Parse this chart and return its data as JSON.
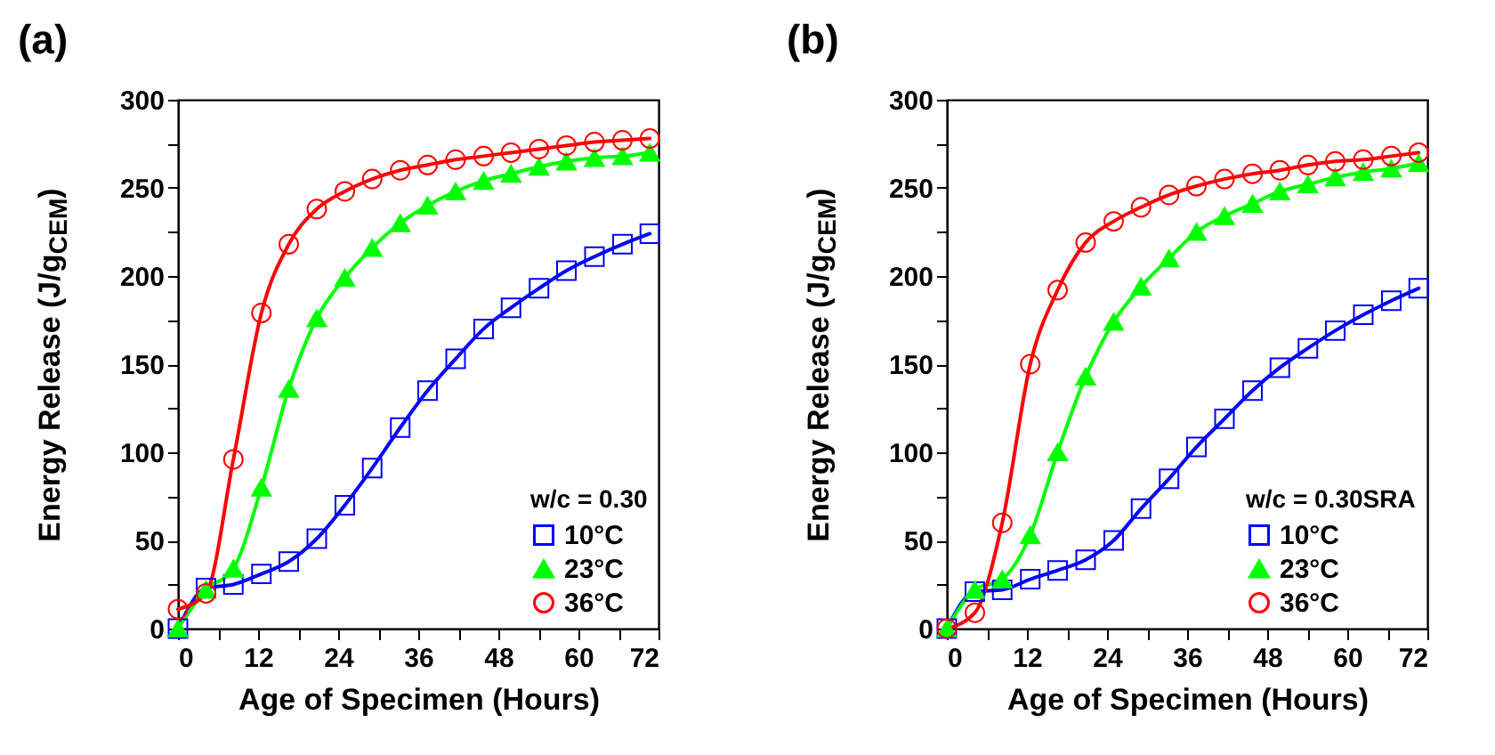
{
  "chart_data": [
    {
      "type": "line",
      "title": "(a)",
      "xlabel": "Age of Specimen (Hours)",
      "ylabel": "Energy Release (J/g$_{CEM}$)",
      "legend_title": "w/c = 0.30",
      "legend": "bottom right",
      "grid": false,
      "line_style": "solid",
      "xlim": [
        0,
        72
      ],
      "xticks": [
        0,
        {
          "value": 6,
          "label": null
        },
        12,
        {
          "value": 18,
          "label": null
        },
        24,
        {
          "value": 30,
          "label": null
        },
        36,
        {
          "value": 42,
          "label": null
        },
        48,
        {
          "value": 54,
          "label": null
        },
        60,
        {
          "value": 66,
          "label": null
        },
        72
      ],
      "ylim": [
        0,
        300
      ],
      "yticks": [
        0,
        {
          "value": 25,
          "label": null
        },
        50,
        {
          "value": 75,
          "label": null
        },
        100,
        {
          "value": 125,
          "label": null
        },
        150,
        {
          "value": 175,
          "label": null
        },
        200,
        {
          "value": 225,
          "label": null
        },
        250,
        {
          "value": 275,
          "label": null
        },
        300
      ],
      "x": [
        0,
        4.2,
        8.3,
        12.5,
        16.6,
        20.8,
        25,
        29.1,
        33.3,
        37.4,
        41.6,
        45.8,
        49.9,
        54.1,
        58.2,
        62.4,
        66.6,
        70.7
      ],
      "series": [
        {
          "name": "10°C",
          "color": "#0000ff",
          "marker": "square",
          "values": [
            0,
            23,
            25,
            31,
            38,
            51,
            70,
            91,
            114,
            135,
            153,
            170,
            182,
            193,
            203,
            211,
            218,
            224
          ]
        },
        {
          "name": "23°C",
          "color": "#00ff00",
          "marker": "triangle",
          "values": [
            0,
            22,
            34,
            80,
            136,
            176,
            199,
            216,
            230,
            240,
            248,
            254,
            258,
            262,
            265,
            267,
            268,
            270
          ]
        },
        {
          "name": "36°C",
          "color": "#ff0000",
          "marker": "circle",
          "values": [
            11,
            20,
            96,
            179,
            218,
            238,
            248,
            255,
            260,
            263,
            266,
            268,
            270,
            272,
            274,
            276,
            277,
            278
          ]
        }
      ]
    },
    {
      "type": "line",
      "title": "(b)",
      "xlabel": "Age of Specimen (Hours)",
      "ylabel": "Energy Release (J/g$_{CEM}$)",
      "legend_title": "w/c = 0.30SRA",
      "legend": "bottom right",
      "grid": false,
      "line_style": "solid",
      "xlim": [
        0,
        72
      ],
      "xticks": [
        0,
        {
          "value": 6,
          "label": null
        },
        12,
        {
          "value": 18,
          "label": null
        },
        24,
        {
          "value": 30,
          "label": null
        },
        36,
        {
          "value": 42,
          "label": null
        },
        48,
        {
          "value": 54,
          "label": null
        },
        60,
        {
          "value": 66,
          "label": null
        },
        72
      ],
      "ylim": [
        0,
        300
      ],
      "yticks": [
        0,
        {
          "value": 25,
          "label": null
        },
        50,
        {
          "value": 75,
          "label": null
        },
        100,
        {
          "value": 125,
          "label": null
        },
        150,
        {
          "value": 175,
          "label": null
        },
        200,
        {
          "value": 225,
          "label": null
        },
        250,
        {
          "value": 275,
          "label": null
        },
        300
      ],
      "x": [
        0,
        4.2,
        8.3,
        12.5,
        16.6,
        20.8,
        25,
        29.1,
        33.3,
        37.4,
        41.6,
        45.8,
        49.9,
        54.1,
        58.2,
        62.4,
        66.6,
        70.7
      ],
      "series": [
        {
          "name": "10°C",
          "color": "#0000ff",
          "marker": "square",
          "values": [
            0,
            21,
            22,
            28,
            33,
            39,
            50,
            68,
            85,
            103,
            119,
            135,
            148,
            159,
            169,
            178,
            186,
            193
          ]
        },
        {
          "name": "23°C",
          "color": "#00ff00",
          "marker": "triangle",
          "values": [
            0,
            22,
            28,
            53,
            100,
            143,
            174,
            194,
            210,
            225,
            234,
            241,
            248,
            252,
            256,
            259,
            261,
            264
          ]
        },
        {
          "name": "36°C",
          "color": "#ff0000",
          "marker": "circle",
          "values": [
            0,
            9,
            60,
            150,
            192,
            219,
            231,
            239,
            246,
            251,
            255,
            258,
            260,
            263,
            265,
            266,
            268,
            270
          ]
        }
      ]
    }
  ]
}
